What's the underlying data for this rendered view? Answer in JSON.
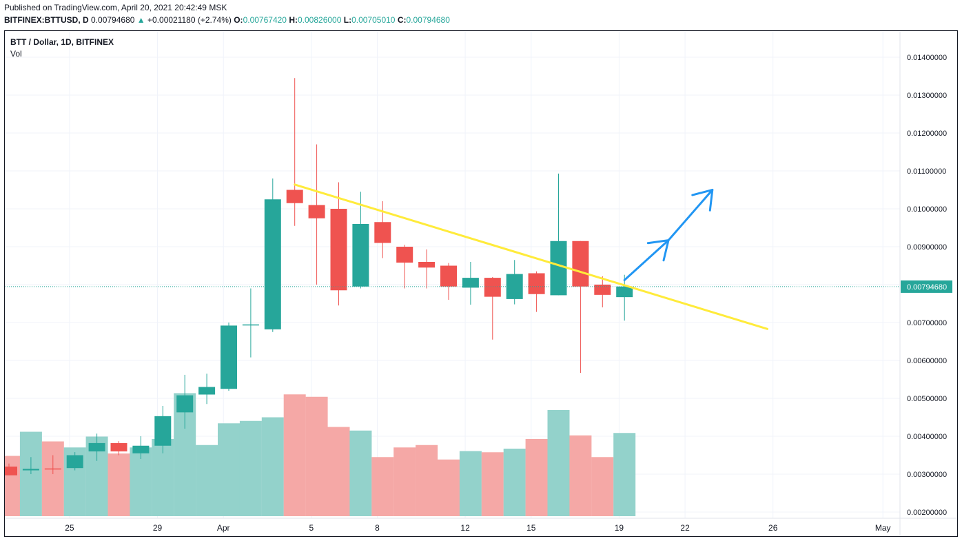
{
  "header": {
    "published": "Published on TradingView.com, April 20, 2021 20:42:49 MSK",
    "symbol": "BITFINEX:BTTUSD, D",
    "price": "0.00794680",
    "change": "+0.00021180 (+2.74%)",
    "o_label": "O:",
    "o_value": "0.00767420",
    "h_label": "H:",
    "h_value": "0.00826000",
    "l_label": "L:",
    "l_value": "0.00705010",
    "c_label": "C:",
    "c_value": "0.00794680"
  },
  "legend": {
    "title": "BTT / Dollar, 1D, BITFINEX",
    "vol": "Vol"
  },
  "colors": {
    "up": "#26a69a",
    "down": "#ef5350",
    "vol_up": "#93d2cb",
    "vol_down": "#f5a8a6",
    "trendline": "#ffeb3b",
    "arrow": "#2196f3",
    "grid": "#f0f3fa"
  },
  "price_tag": "0.00794680",
  "chart_data": {
    "type": "candlestick",
    "series_name": "BTT / Dollar, 1D, BITFINEX",
    "y_ticks": [
      "0.01400000",
      "0.01300000",
      "0.01200000",
      "0.01100000",
      "0.01000000",
      "0.00900000",
      "0.00800000",
      "0.00700000",
      "0.00600000",
      "0.00500000",
      "0.00400000",
      "0.00300000",
      "0.00200000"
    ],
    "x_ticks": [
      {
        "label": "25",
        "day": 1
      },
      {
        "label": "29",
        "day": 5
      },
      {
        "label": "Apr",
        "day": 8
      },
      {
        "label": "5",
        "day": 12
      },
      {
        "label": "8",
        "day": 15
      },
      {
        "label": "12",
        "day": 19
      },
      {
        "label": "15",
        "day": 22
      },
      {
        "label": "19",
        "day": 26
      },
      {
        "label": "22",
        "day": 29
      },
      {
        "label": "26",
        "day": 33
      },
      {
        "label": "May",
        "day": 38
      }
    ],
    "candles": [
      {
        "day": 0,
        "o": 0.0032,
        "h": 0.00328,
        "l": 0.00297,
        "c": 0.00297,
        "v": 2.5
      },
      {
        "day": 1,
        "o": 0.0031,
        "h": 0.00345,
        "l": 0.003,
        "c": 0.00314,
        "v": 3.5
      },
      {
        "day": 2,
        "o": 0.00315,
        "h": 0.0035,
        "l": 0.003,
        "c": 0.00313,
        "v": 3.1
      },
      {
        "day": 3,
        "o": 0.00316,
        "h": 0.00358,
        "l": 0.0031,
        "c": 0.0035,
        "v": 2.85
      },
      {
        "day": 4,
        "o": 0.0036,
        "h": 0.00407,
        "l": 0.00335,
        "c": 0.00382,
        "v": 3.3
      },
      {
        "day": 5,
        "o": 0.00382,
        "h": 0.00387,
        "l": 0.0035,
        "c": 0.0036,
        "v": 2.6
      },
      {
        "day": 6,
        "o": 0.00355,
        "h": 0.004,
        "l": 0.0034,
        "c": 0.00375,
        "v": 2.85
      },
      {
        "day": 7,
        "o": 0.00375,
        "h": 0.0048,
        "l": 0.00355,
        "c": 0.00453,
        "v": 3.2
      },
      {
        "day": 8,
        "o": 0.00463,
        "h": 0.00562,
        "l": 0.0042,
        "c": 0.00508,
        "v": 5.1
      },
      {
        "day": 9,
        "o": 0.0051,
        "h": 0.00565,
        "l": 0.00485,
        "c": 0.0053,
        "v": 2.95
      },
      {
        "day": 10,
        "o": 0.00525,
        "h": 0.007,
        "l": 0.0052,
        "c": 0.00692,
        "v": 3.85
      },
      {
        "day": 11,
        "o": 0.00693,
        "h": 0.0079,
        "l": 0.00608,
        "c": 0.00695,
        "v": 3.95
      },
      {
        "day": 12,
        "o": 0.00682,
        "h": 0.0108,
        "l": 0.00675,
        "c": 0.01025,
        "v": 4.1
      },
      {
        "day": 13,
        "o": 0.0105,
        "h": 0.01345,
        "l": 0.00955,
        "c": 0.01015,
        "v": 5.05
      },
      {
        "day": 14,
        "o": 0.0101,
        "h": 0.0117,
        "l": 0.008,
        "c": 0.00975,
        "v": 4.95
      },
      {
        "day": 15,
        "o": 0.01,
        "h": 0.0107,
        "l": 0.00745,
        "c": 0.00785,
        "v": 3.7
      },
      {
        "day": 16,
        "o": 0.00795,
        "h": 0.01045,
        "l": 0.0079,
        "c": 0.0096,
        "v": 3.55
      },
      {
        "day": 17,
        "o": 0.00965,
        "h": 0.0102,
        "l": 0.0087,
        "c": 0.0091,
        "v": 2.45
      },
      {
        "day": 18,
        "o": 0.009,
        "h": 0.00905,
        "l": 0.0079,
        "c": 0.00858,
        "v": 2.85
      },
      {
        "day": 19,
        "o": 0.0086,
        "h": 0.00893,
        "l": 0.0079,
        "c": 0.00845,
        "v": 2.95
      },
      {
        "day": 20,
        "o": 0.0085,
        "h": 0.00857,
        "l": 0.0076,
        "c": 0.00795,
        "v": 2.35
      },
      {
        "day": 21,
        "o": 0.00792,
        "h": 0.0086,
        "l": 0.00747,
        "c": 0.00818,
        "v": 2.7
      },
      {
        "day": 22,
        "o": 0.00818,
        "h": 0.0082,
        "l": 0.00655,
        "c": 0.00768,
        "v": 2.65
      },
      {
        "day": 23,
        "o": 0.00762,
        "h": 0.00865,
        "l": 0.00748,
        "c": 0.00828,
        "v": 2.8
      },
      {
        "day": 24,
        "o": 0.0083,
        "h": 0.00835,
        "l": 0.00728,
        "c": 0.00775,
        "v": 3.2
      },
      {
        "day": 25,
        "o": 0.00772,
        "h": 0.01093,
        "l": 0.00772,
        "c": 0.00915,
        "v": 4.4
      },
      {
        "day": 26,
        "o": 0.00915,
        "h": 0.00915,
        "l": 0.00567,
        "c": 0.00795,
        "v": 3.35
      },
      {
        "day": 27,
        "o": 0.008,
        "h": 0.00822,
        "l": 0.0074,
        "c": 0.00773,
        "v": 2.45
      },
      {
        "day": 28,
        "o": 0.00767,
        "h": 0.00826,
        "l": 0.00705,
        "c": 0.00795,
        "v": 3.45
      }
    ],
    "trendline": {
      "from": {
        "day": 13,
        "price": 0.01064
      },
      "to": {
        "day": 34.5,
        "price": 0.00683
      }
    },
    "arrows": [
      {
        "from": {
          "day": 28,
          "price": 0.00812
        },
        "to": {
          "day": 30,
          "price": 0.00917
        }
      },
      {
        "from": {
          "day": 30,
          "price": 0.00917
        },
        "to": {
          "day": 32,
          "price": 0.0105
        }
      }
    ],
    "last_price": 0.0079468
  }
}
